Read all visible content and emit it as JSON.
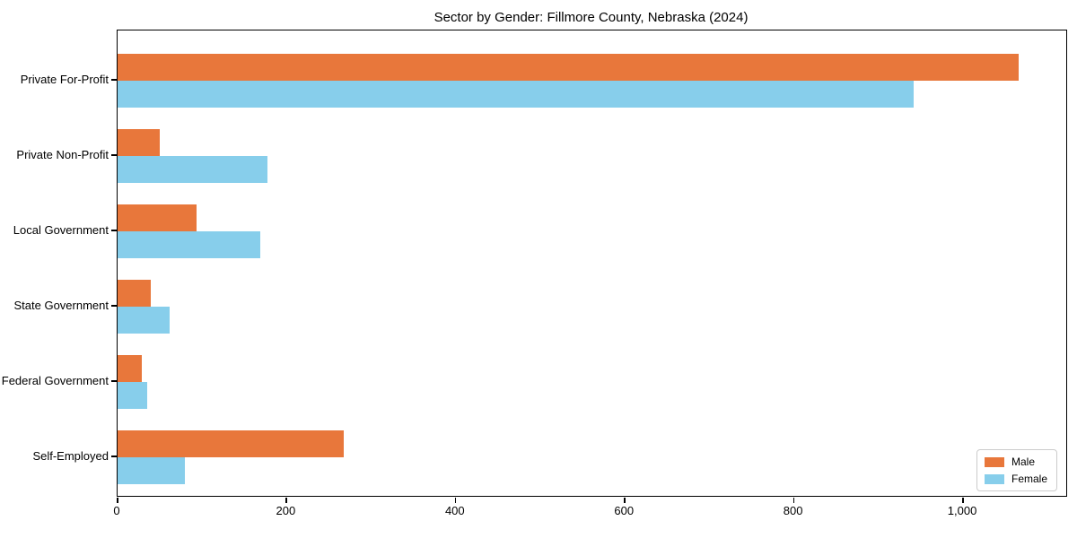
{
  "chart_data": {
    "type": "bar",
    "orientation": "horizontal",
    "title": "Sector by Gender: Fillmore County, Nebraska (2024)",
    "categories": [
      "Private For-Profit",
      "Private Non-Profit",
      "Local Government",
      "State Government",
      "Federal Government",
      "Self-Employed"
    ],
    "series": [
      {
        "name": "Male",
        "color": "#E8773B",
        "values": [
          1066,
          50,
          93,
          39,
          29,
          268
        ]
      },
      {
        "name": "Female",
        "color": "#87CEEB",
        "values": [
          942,
          177,
          169,
          62,
          35,
          80
        ]
      }
    ],
    "xlabel": "",
    "ylabel": "",
    "xlim": [
      0,
      1122
    ],
    "xticks": [
      0,
      200,
      400,
      600,
      800,
      1000
    ],
    "xtick_labels": [
      "0",
      "200",
      "400",
      "600",
      "800",
      "1,000"
    ],
    "grid": false,
    "legend": {
      "position": "lower right",
      "entries": [
        "Male",
        "Female"
      ]
    },
    "colors": {
      "male": "#E8773B",
      "female": "#87CEEB",
      "axis": "#000000",
      "legend_border": "#cccccc",
      "background": "#ffffff"
    }
  }
}
